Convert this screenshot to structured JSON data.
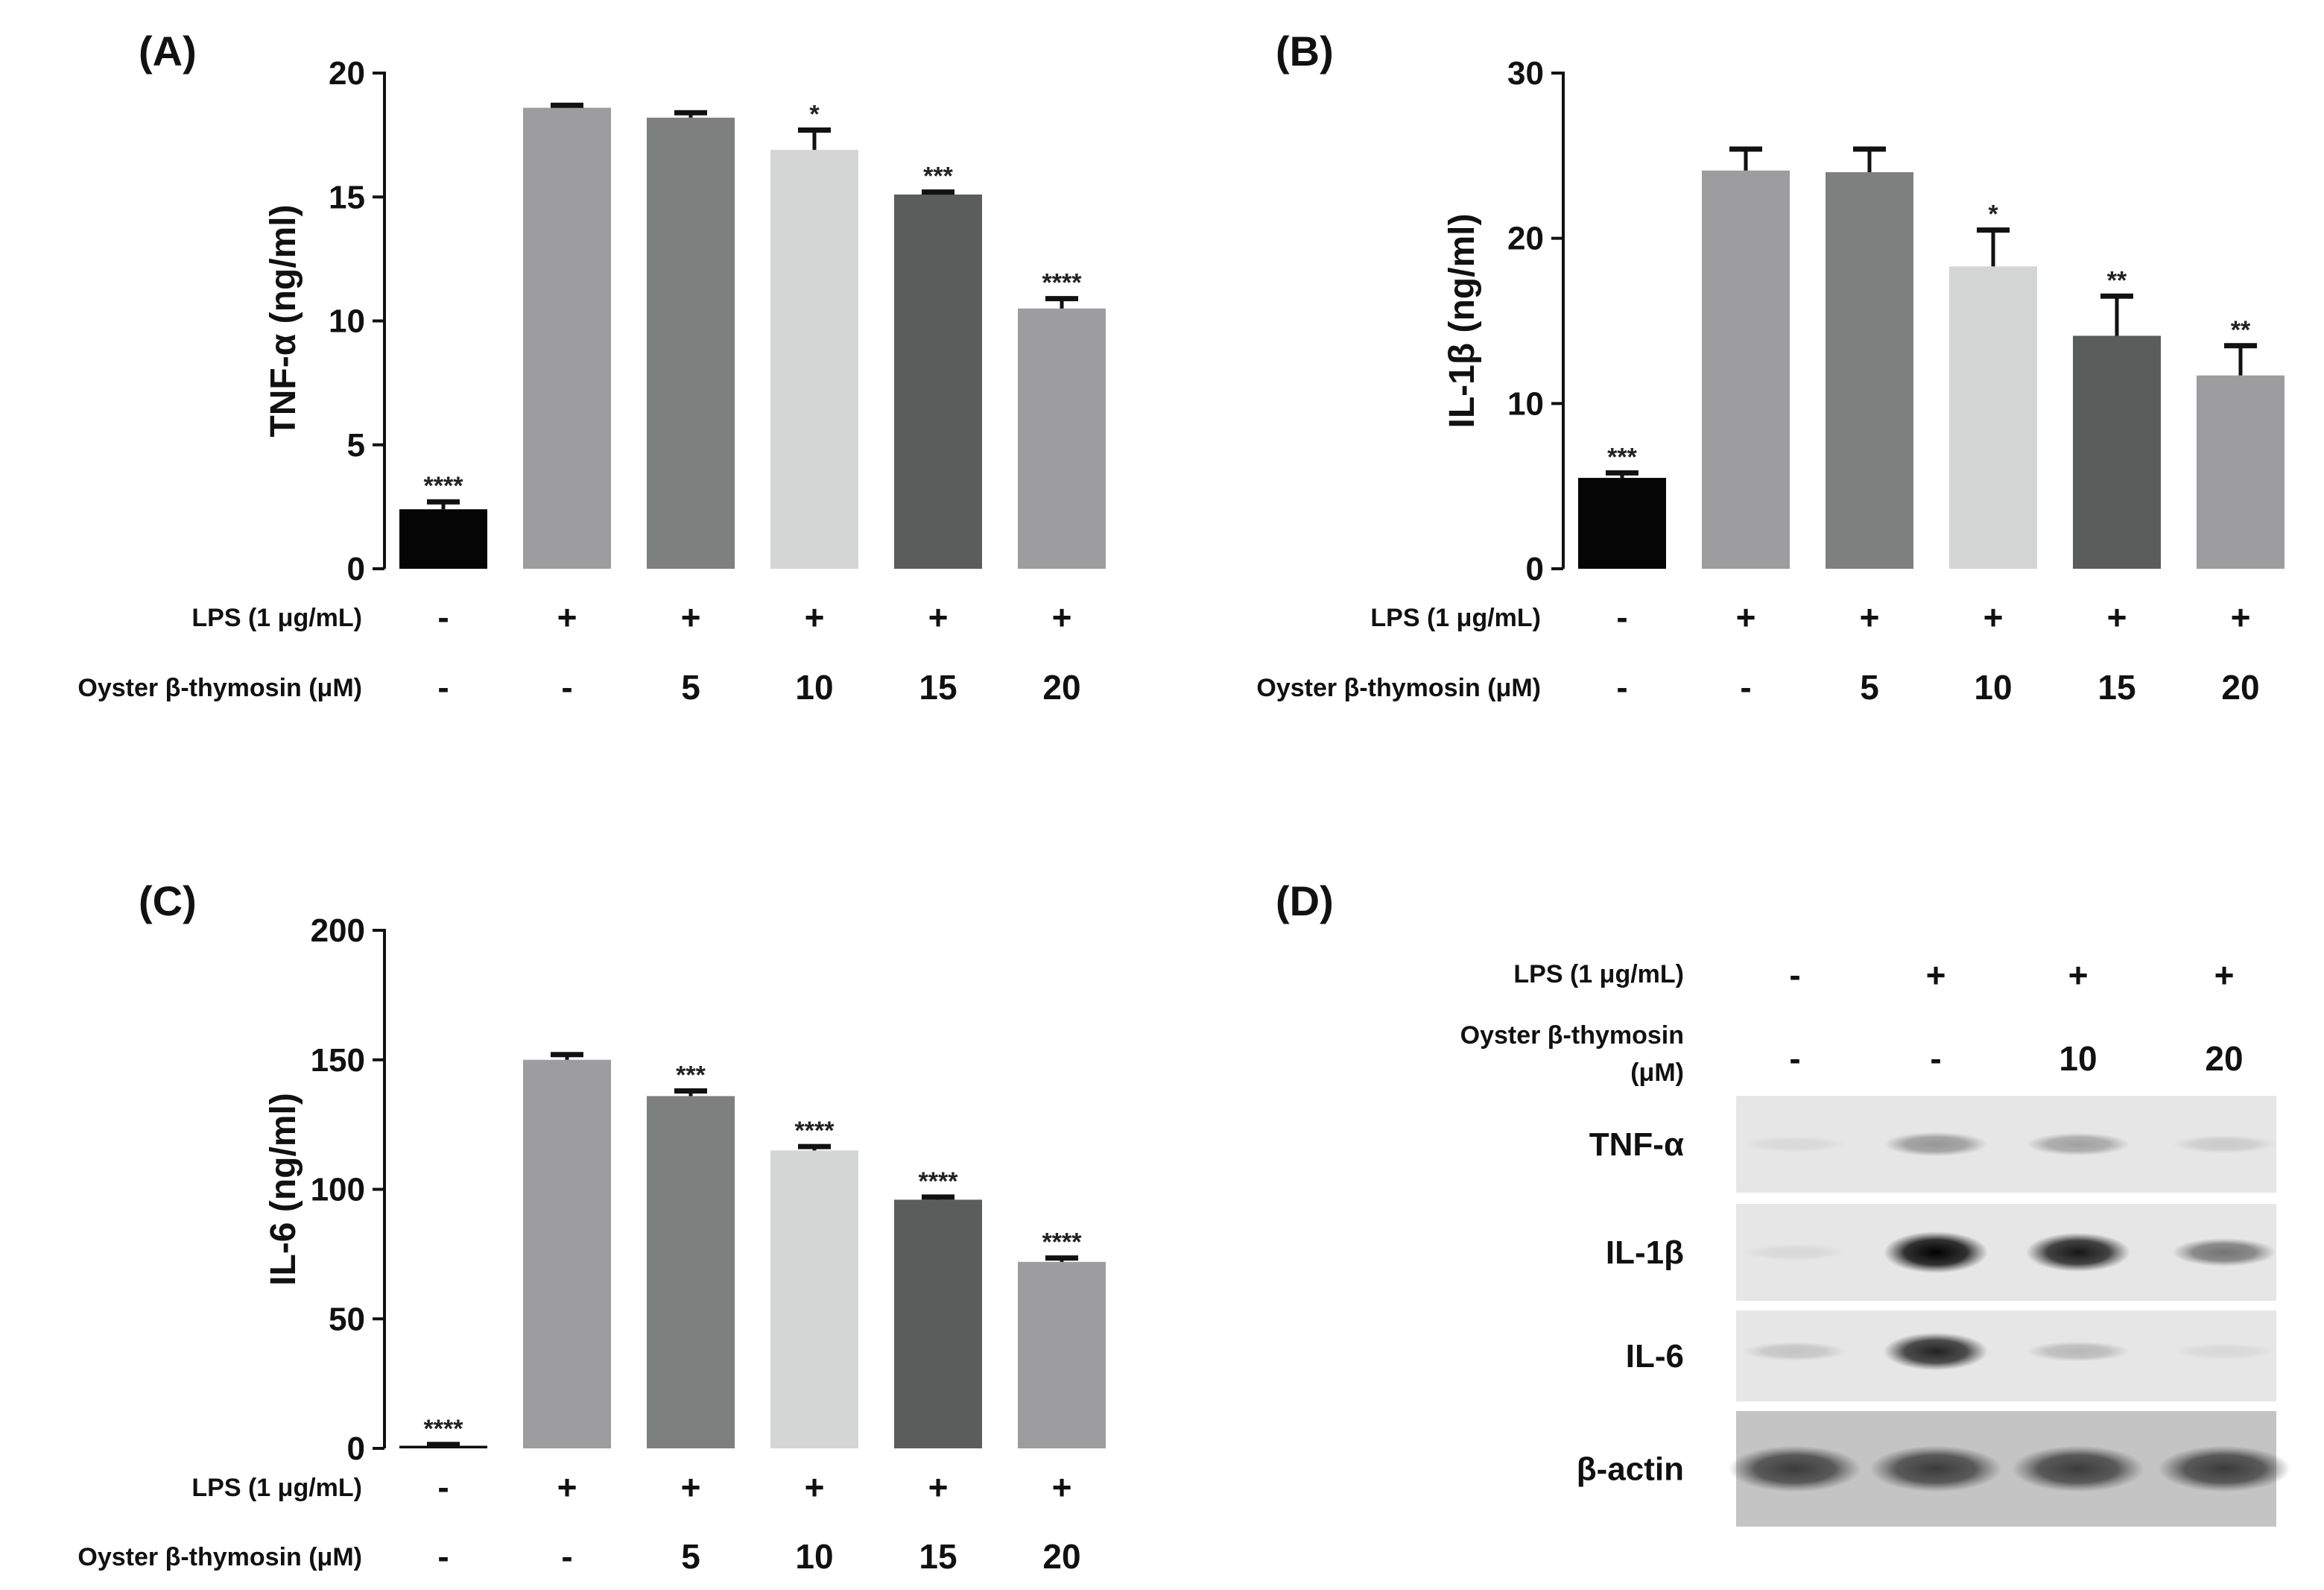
{
  "panels": {
    "a": {
      "letter": "(A)",
      "ylabel": "TNF-α (ng/ml)"
    },
    "b": {
      "letter": "(B)",
      "ylabel": "IL-1β (ng/ml)"
    },
    "c": {
      "letter": "(C)",
      "ylabel": "IL-6 (ng/ml)"
    },
    "d": {
      "letter": "(D)"
    }
  },
  "condition_rows": {
    "lps_label": "LPS (1 μg/mL)",
    "oyster_label": "Oyster β-thymosin (μM)",
    "lps_values": [
      "-",
      "+",
      "+",
      "+",
      "+",
      "+"
    ],
    "oyster_values": [
      "-",
      "-",
      "5",
      "10",
      "15",
      "20"
    ]
  },
  "chart_data": [
    {
      "panel": "A",
      "type": "bar",
      "ylabel": "TNF-α (ng/ml)",
      "ylim": [
        0,
        20
      ],
      "yticks": [
        0,
        5,
        10,
        15,
        20
      ],
      "categories": [
        "-/-",
        "+/-",
        "+/5",
        "+/10",
        "+/15",
        "+/20"
      ],
      "values": [
        2.4,
        18.6,
        18.2,
        16.9,
        15.1,
        10.5
      ],
      "errors": [
        0.3,
        0.1,
        0.2,
        0.8,
        0.1,
        0.4
      ],
      "significance": [
        "****",
        "",
        "",
        "*",
        "***",
        "****"
      ],
      "bar_colors": [
        "#050505",
        "#9d9c9f",
        "#7e807f",
        "#d4d6d5",
        "#5b5d5c",
        "#9d9c9f"
      ]
    },
    {
      "panel": "B",
      "type": "bar",
      "ylabel": "IL-1β (ng/ml)",
      "ylim": [
        0,
        30
      ],
      "yticks": [
        0,
        10,
        20,
        30
      ],
      "categories": [
        "-/-",
        "+/-",
        "+/5",
        "+/10",
        "+/15",
        "+/20"
      ],
      "values": [
        5.5,
        24.1,
        24.0,
        18.3,
        14.1,
        11.7
      ],
      "errors": [
        0.3,
        1.3,
        1.4,
        2.2,
        2.4,
        1.8
      ],
      "significance": [
        "***",
        "",
        "",
        "*",
        "**",
        "**"
      ],
      "bar_colors": [
        "#050505",
        "#9d9c9f",
        "#7e807f",
        "#d4d6d5",
        "#5b5d5c",
        "#9d9c9f"
      ]
    },
    {
      "panel": "C",
      "type": "bar",
      "ylabel": "IL-6 (ng/ml)",
      "ylim": [
        0,
        200
      ],
      "yticks": [
        0,
        50,
        100,
        150,
        200
      ],
      "categories": [
        "-/-",
        "+/-",
        "+/5",
        "+/10",
        "+/15",
        "+/20"
      ],
      "values": [
        1,
        150,
        136,
        115,
        96,
        72
      ],
      "errors": [
        0.5,
        2,
        2,
        1.5,
        1,
        1.5
      ],
      "significance": [
        "****",
        "",
        "***",
        "****",
        "****",
        "****"
      ],
      "bar_colors": [
        "#050505",
        "#9d9c9f",
        "#7e807f",
        "#d4d6d5",
        "#5b5d5c",
        "#9d9c9f"
      ]
    }
  ],
  "western_blot": {
    "lps_label": "LPS (1 μg/mL)",
    "oyster_label_line1": "Oyster β-thymosin",
    "oyster_label_line2": "(μM)",
    "lps_values": [
      "-",
      "+",
      "+",
      "+"
    ],
    "oyster_values": [
      "-",
      "-",
      "10",
      "20"
    ],
    "rows": [
      {
        "label": "TNF-α",
        "band_intensity": [
          0.05,
          0.35,
          0.3,
          0.12
        ]
      },
      {
        "label": "IL-1β",
        "band_intensity": [
          0.05,
          1.0,
          0.9,
          0.5
        ]
      },
      {
        "label": "IL-6",
        "band_intensity": [
          0.15,
          0.85,
          0.2,
          0.05
        ]
      },
      {
        "label": "β-actin",
        "band_intensity": [
          0.7,
          0.7,
          0.7,
          0.7
        ]
      }
    ]
  }
}
